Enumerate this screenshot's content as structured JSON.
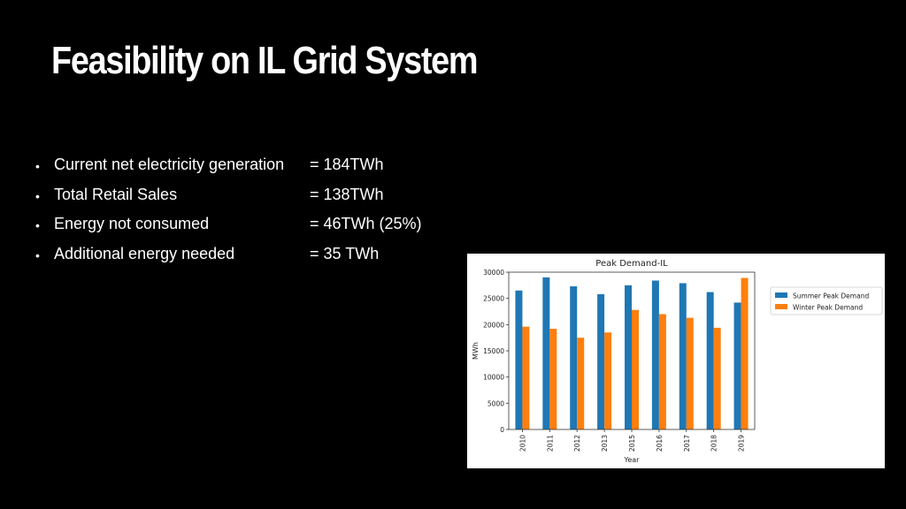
{
  "slide": {
    "title": "Feasibility on IL Grid System",
    "bullets": [
      {
        "label": "Current net electricity generation",
        "value": "= 184TWh"
      },
      {
        "label": "Total Retail Sales",
        "value": "= 138TWh"
      },
      {
        "label": "Energy not consumed",
        "value": "= 46TWh (25%)"
      },
      {
        "label": "Additional energy needed",
        "value": "= 35 TWh"
      }
    ],
    "bullet_symbol": "•"
  },
  "chart_data": {
    "type": "bar",
    "title": "Peak Demand-IL",
    "xlabel": "Year",
    "ylabel": "MWh",
    "categories": [
      "2010",
      "2011",
      "2012",
      "2013",
      "2015",
      "2016",
      "2017",
      "2018",
      "2019"
    ],
    "series": [
      {
        "name": "Summer Peak Demand",
        "color": "#1f77b4",
        "values": [
          26500,
          29000,
          27300,
          25800,
          27500,
          28400,
          27900,
          26200,
          24200
        ]
      },
      {
        "name": "Winter Peak Demand",
        "color": "#ff7f0e",
        "values": [
          19600,
          19200,
          17500,
          18500,
          22800,
          22000,
          21300,
          19400,
          28900
        ]
      }
    ],
    "ylim": [
      0,
      30000
    ],
    "yticks": [
      0,
      5000,
      10000,
      15000,
      20000,
      25000,
      30000
    ],
    "legend_position": "right",
    "grid": false
  }
}
